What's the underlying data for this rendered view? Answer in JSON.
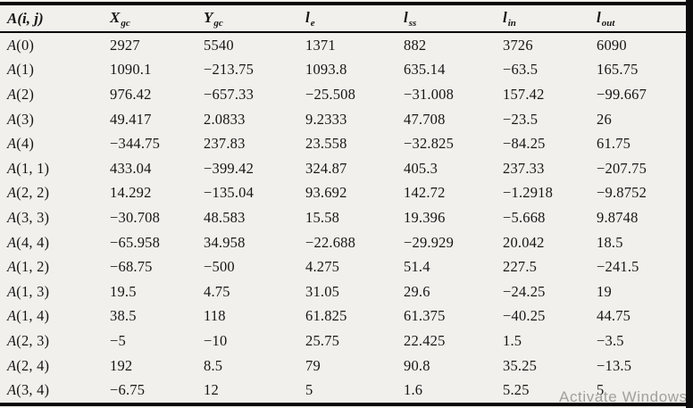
{
  "table": {
    "columns": [
      {
        "base": "A(i, j)",
        "sub": ""
      },
      {
        "base": "X",
        "sub": "gc"
      },
      {
        "base": "Y",
        "sub": "gc"
      },
      {
        "base": "l",
        "sub": "e"
      },
      {
        "base": "l",
        "sub": "ss"
      },
      {
        "base": "l",
        "sub": "in"
      },
      {
        "base": "l",
        "sub": "out"
      }
    ],
    "rows": [
      {
        "label": "A(0)",
        "values": [
          "2927",
          "5540",
          "1371",
          "882",
          "3726",
          "6090"
        ]
      },
      {
        "label": "A(1)",
        "values": [
          "1090.1",
          "−213.75",
          "1093.8",
          "635.14",
          "−63.5",
          "165.75"
        ]
      },
      {
        "label": "A(2)",
        "values": [
          "976.42",
          "−657.33",
          "−25.508",
          "−31.008",
          "157.42",
          "−99.667"
        ]
      },
      {
        "label": "A(3)",
        "values": [
          "49.417",
          "2.0833",
          "9.2333",
          "47.708",
          "−23.5",
          "26"
        ]
      },
      {
        "label": "A(4)",
        "values": [
          "−344.75",
          "237.83",
          "23.558",
          "−32.825",
          "−84.25",
          "61.75"
        ]
      },
      {
        "label": "A(1, 1)",
        "values": [
          "433.04",
          "−399.42",
          "324.87",
          "405.3",
          "237.33",
          "−207.75"
        ]
      },
      {
        "label": "A(2, 2)",
        "values": [
          "14.292",
          "−135.04",
          "93.692",
          "142.72",
          "−1.2918",
          "−9.8752"
        ]
      },
      {
        "label": "A(3, 3)",
        "values": [
          "−30.708",
          "48.583",
          "15.58",
          "19.396",
          "−5.668",
          "9.8748"
        ]
      },
      {
        "label": "A(4, 4)",
        "values": [
          "−65.958",
          "34.958",
          "−22.688",
          "−29.929",
          "20.042",
          "18.5"
        ]
      },
      {
        "label": "A(1, 2)",
        "values": [
          "−68.75",
          "−500",
          "4.275",
          "51.4",
          "227.5",
          "−241.5"
        ]
      },
      {
        "label": "A(1, 3)",
        "values": [
          "19.5",
          "4.75",
          "31.05",
          "29.6",
          "−24.25",
          "19"
        ]
      },
      {
        "label": "A(1, 4)",
        "values": [
          "38.5",
          "118",
          "61.825",
          "61.375",
          "−40.25",
          "44.75"
        ]
      },
      {
        "label": "A(2, 3)",
        "values": [
          "−5",
          "−10",
          "25.75",
          "22.425",
          "1.5",
          "−3.5"
        ]
      },
      {
        "label": "A(2, 4)",
        "values": [
          "192",
          "8.5",
          "79",
          "90.8",
          "35.25",
          "−13.5"
        ]
      },
      {
        "label": "A(3, 4)",
        "values": [
          "−6.75",
          "12",
          "5",
          "1.6",
          "5.25",
          "5"
        ]
      }
    ]
  },
  "watermark": "Activate Windows",
  "colors": {
    "background": "#f1f0ec",
    "border": "#000000",
    "text": "#161616",
    "watermark": "#a2a09c",
    "edge_strip": "#0c0c0c"
  }
}
